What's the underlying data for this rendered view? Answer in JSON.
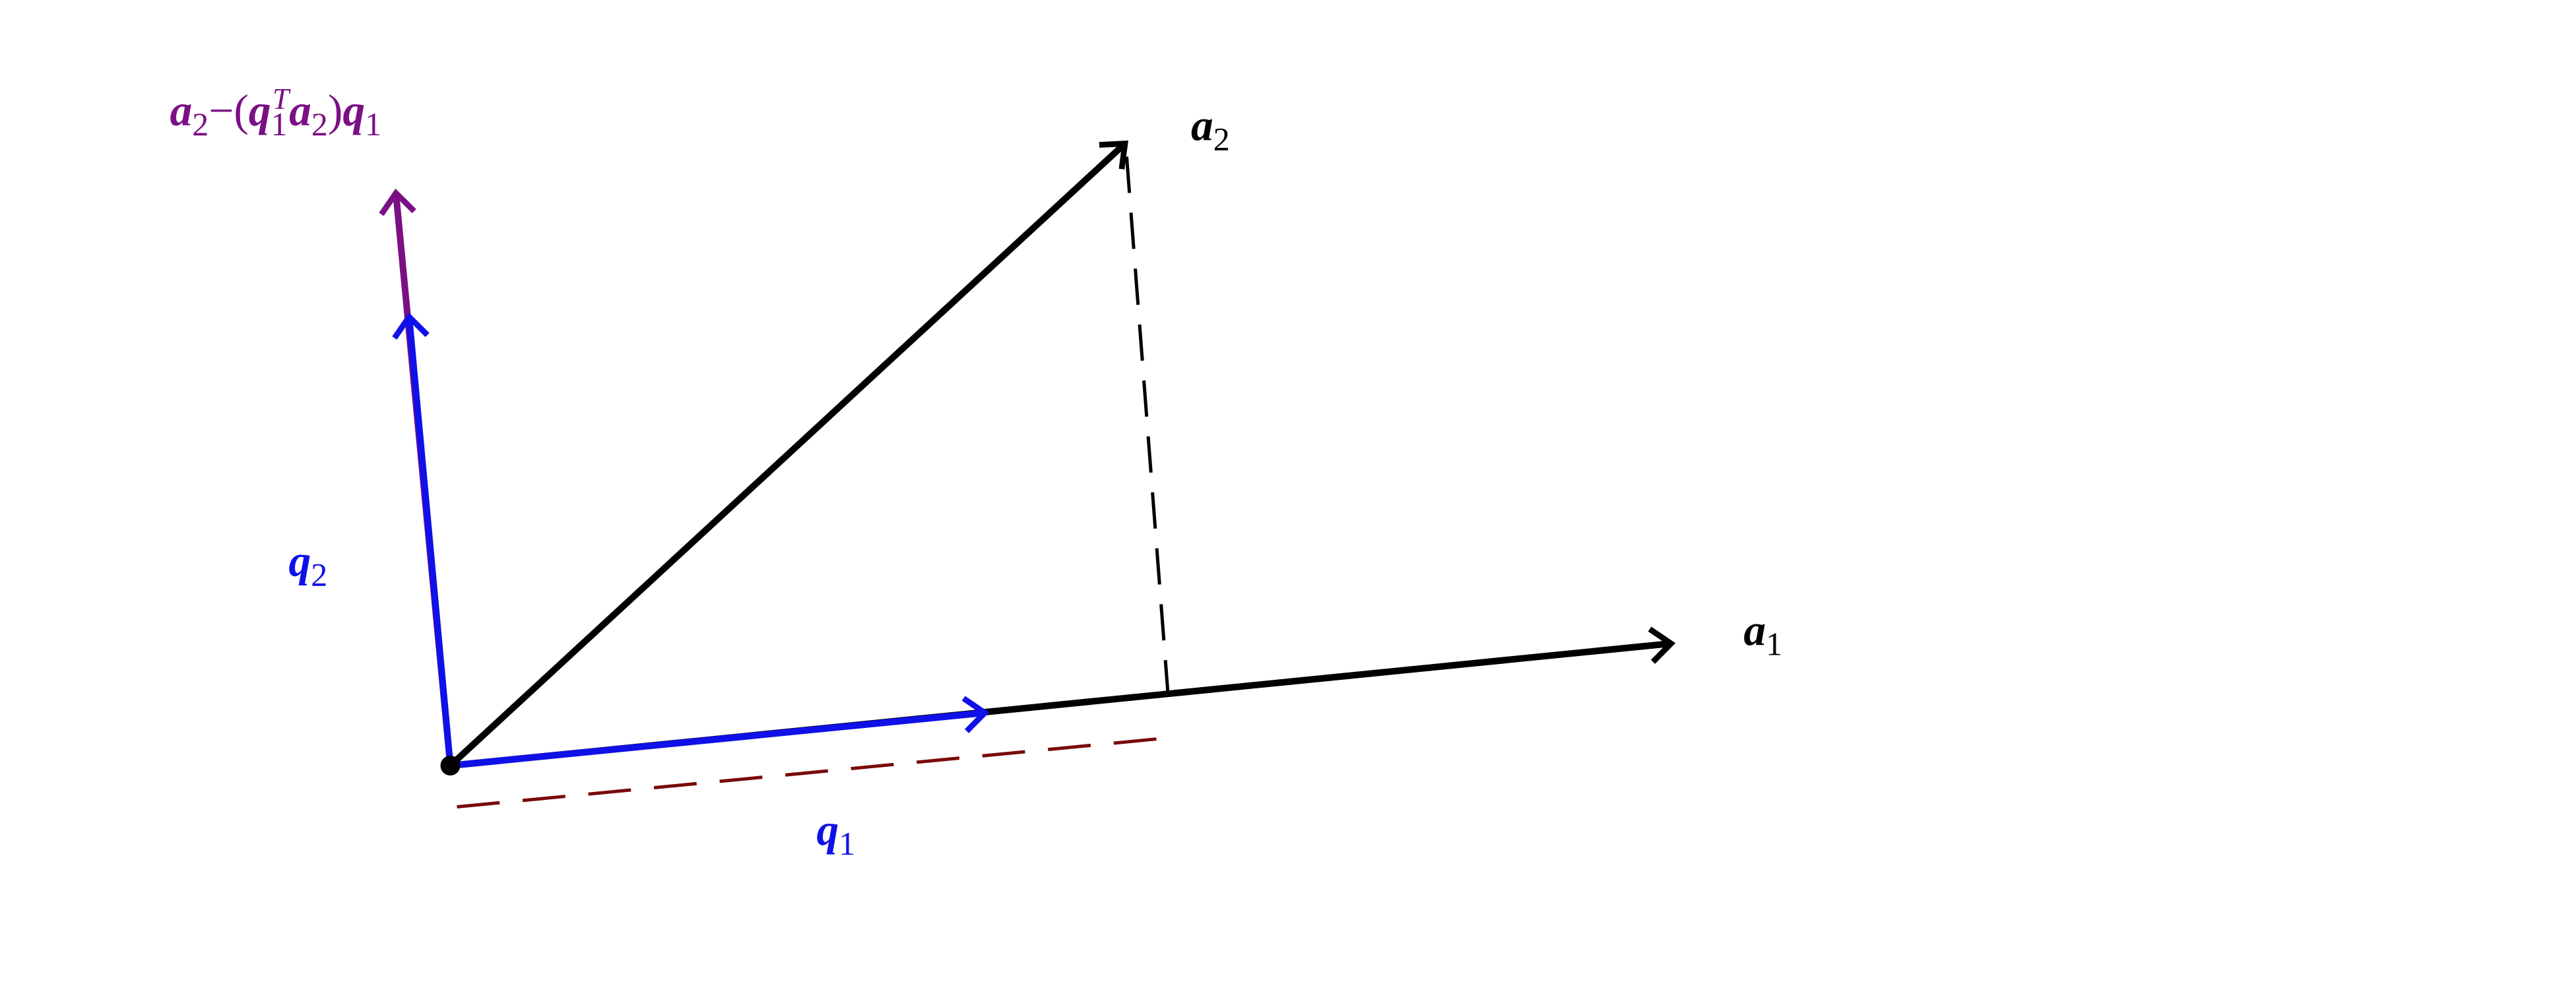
{
  "labels": [
    {
      "id": "projection-residual",
      "color": "#7b0f84",
      "parts": [
        {
          "text": "a",
          "role": "base"
        },
        {
          "text": "2",
          "role": "sub"
        },
        {
          "text": "−(",
          "role": "op"
        },
        {
          "text": "q",
          "role": "base"
        },
        {
          "text": "1",
          "role": "subsup"
        },
        {
          "text": "T",
          "role": "sup"
        },
        {
          "text": "a",
          "role": "base"
        },
        {
          "text": "2",
          "role": "sub"
        },
        {
          "text": ")",
          "role": "op"
        },
        {
          "text": "q",
          "role": "base"
        },
        {
          "text": "1",
          "role": "sub"
        }
      ]
    },
    {
      "id": "a2",
      "color": "#000000",
      "parts": [
        {
          "text": "a",
          "role": "base"
        },
        {
          "text": "2",
          "role": "sub"
        }
      ]
    },
    {
      "id": "a1",
      "color": "#000000",
      "parts": [
        {
          "text": "a",
          "role": "base"
        },
        {
          "text": "1",
          "role": "sub"
        }
      ]
    },
    {
      "id": "q2",
      "color": "#1010e8",
      "parts": [
        {
          "text": "q",
          "role": "base"
        },
        {
          "text": "2",
          "role": "sub"
        }
      ]
    },
    {
      "id": "q1",
      "color": "#1010e8",
      "parts": [
        {
          "text": "q",
          "role": "base"
        },
        {
          "text": "1",
          "role": "sub"
        }
      ]
    }
  ]
}
